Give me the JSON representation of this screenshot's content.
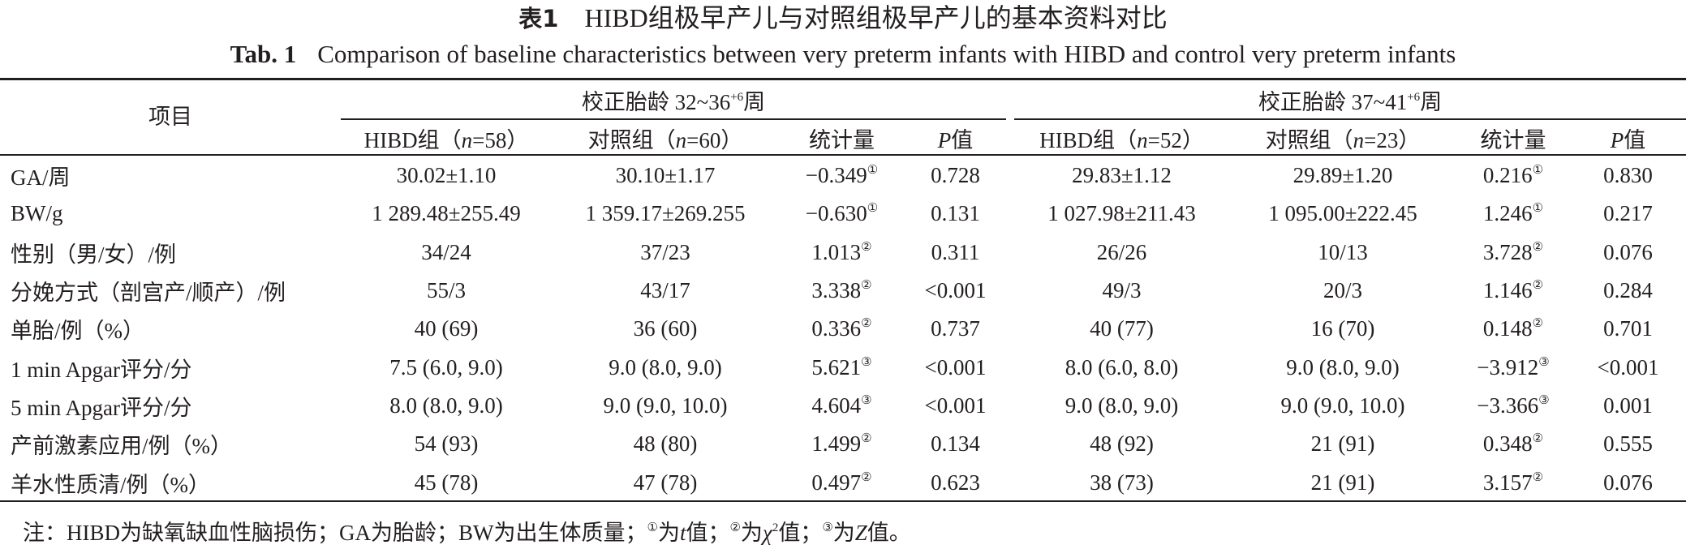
{
  "title_cn": {
    "label": "表1",
    "text": "HIBD组极早产儿与对照组极早产儿的基本资料对比"
  },
  "title_en": {
    "label": "Tab. 1",
    "text": "Comparison of baseline characteristics between very preterm infants with HIBD and control very preterm infants"
  },
  "header": {
    "item": "项目",
    "group1": {
      "prefix": "校正胎龄 32~36",
      "sup": "+6",
      "suffix": "周"
    },
    "group2": {
      "prefix": "校正胎龄 37~41",
      "sup": "+6",
      "suffix": "周"
    },
    "cols": [
      {
        "pre": "HIBD组（",
        "n": "n",
        "post": "=58）"
      },
      {
        "pre": "对照组（",
        "n": "n",
        "post": "=60）"
      },
      {
        "text": "统计量"
      },
      {
        "p": "P",
        "post": "值"
      },
      {
        "pre": "HIBD组（",
        "n": "n",
        "post": "=52）"
      },
      {
        "pre": "对照组（",
        "n": "n",
        "post": "=23）"
      },
      {
        "text": "统计量"
      },
      {
        "p": "P",
        "post": "值"
      }
    ]
  },
  "rows": [
    {
      "item": "GA/周",
      "c1": "30.02±1.10",
      "c2": "30.10±1.17",
      "s1": "−0.349",
      "m1": "①",
      "p1": "0.728",
      "c3": "29.83±1.12",
      "c4": "29.89±1.20",
      "s2": "0.216",
      "m2": "①",
      "p2": "0.830"
    },
    {
      "item": "BW/g",
      "c1": "1 289.48±255.49",
      "c2": "1 359.17±269.255",
      "s1": "−0.630",
      "m1": "①",
      "p1": "0.131",
      "c3": "1 027.98±211.43",
      "c4": "1 095.00±222.45",
      "s2": "1.246",
      "m2": "①",
      "p2": "0.217"
    },
    {
      "item": "性别（男/女）/例",
      "c1": "34/24",
      "c2": "37/23",
      "s1": "1.013",
      "m1": "②",
      "p1": "0.311",
      "c3": "26/26",
      "c4": "10/13",
      "s2": "3.728",
      "m2": "②",
      "p2": "0.076"
    },
    {
      "item": "分娩方式（剖宫产/顺产）/例",
      "c1": "55/3",
      "c2": "43/17",
      "s1": "3.338",
      "m1": "②",
      "p1": "<0.001",
      "c3": "49/3",
      "c4": "20/3",
      "s2": "1.146",
      "m2": "②",
      "p2": "0.284"
    },
    {
      "item": "单胎/例（%）",
      "c1": "40 (69)",
      "c2": "36 (60)",
      "s1": "0.336",
      "m1": "②",
      "p1": "0.737",
      "c3": "40 (77)",
      "c4": "16 (70)",
      "s2": "0.148",
      "m2": "②",
      "p2": "0.701"
    },
    {
      "item": "1 min Apgar评分/分",
      "c1": "7.5 (6.0, 9.0)",
      "c2": "9.0 (8.0, 9.0)",
      "s1": "5.621",
      "m1": "③",
      "p1": "<0.001",
      "c3": "8.0 (6.0, 8.0)",
      "c4": "9.0 (8.0, 9.0)",
      "s2": "−3.912",
      "m2": "③",
      "p2": "<0.001"
    },
    {
      "item": "5 min Apgar评分/分",
      "c1": "8.0 (8.0, 9.0)",
      "c2": "9.0 (9.0, 10.0)",
      "s1": "4.604",
      "m1": "③",
      "p1": "<0.001",
      "c3": "9.0 (8.0, 9.0)",
      "c4": "9.0 (9.0, 10.0)",
      "s2": "−3.366",
      "m2": "③",
      "p2": "0.001"
    },
    {
      "item": "产前激素应用/例（%）",
      "c1": "54 (93)",
      "c2": "48 (80)",
      "s1": "1.499",
      "m1": "②",
      "p1": "0.134",
      "c3": "48 (92)",
      "c4": "21 (91)",
      "s2": "0.348",
      "m2": "②",
      "p2": "0.555"
    },
    {
      "item": "羊水性质清/例（%）",
      "c1": "45 (78)",
      "c2": "47 (78)",
      "s1": "0.497",
      "m1": "②",
      "p1": "0.623",
      "c3": "38 (73)",
      "c4": "21 (91)",
      "s2": "3.157",
      "m2": "②",
      "p2": "0.076"
    }
  ],
  "note": {
    "a": "注：HIBD为缺氧缺血性脑损伤；GA为胎龄；BW为出生体质量；",
    "m1": "①",
    "b": "为",
    "t": "t",
    "c": "值；",
    "m2": "②",
    "d": "为",
    "chi": "χ",
    "chisup": "2",
    "e": "值；",
    "m3": "③",
    "f": "为",
    "z": "Z",
    "g": "值。"
  }
}
